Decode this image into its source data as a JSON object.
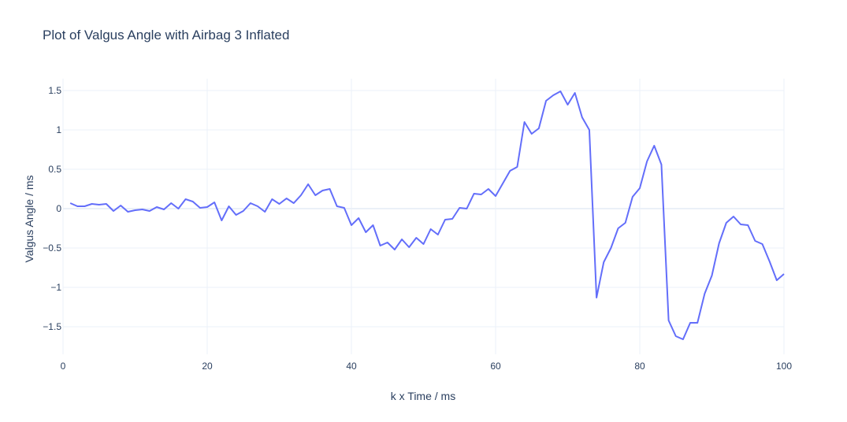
{
  "chart_data": {
    "type": "line",
    "title": "Plot of Valgus Angle with Airbag 3 Inflated",
    "xlabel": "k x Time / ms",
    "ylabel": "Valgus Angle / ms",
    "xlim": [
      0,
      100
    ],
    "ylim": [
      -1.85,
      1.65
    ],
    "xticks": [
      0,
      20,
      40,
      60,
      80,
      100
    ],
    "xtick_labels": [
      "0",
      "20",
      "40",
      "60",
      "80",
      "100"
    ],
    "yticks": [
      -1.5,
      -1,
      -0.5,
      0,
      0.5,
      1,
      1.5
    ],
    "ytick_labels": [
      "−1.5",
      "−1",
      "−0.5",
      "0",
      "0.5",
      "1",
      "1.5"
    ],
    "grid": true,
    "colors": {
      "line": "#636efa",
      "grid": "#ebf0f8",
      "text": "#2a3f5f"
    },
    "series": [
      {
        "x": [
          1,
          2,
          3,
          4,
          5,
          6,
          7,
          8,
          9,
          10,
          11,
          12,
          13,
          14,
          15,
          16,
          17,
          18,
          19,
          20,
          21,
          22,
          23,
          24,
          25,
          26,
          27,
          28,
          29,
          30,
          31,
          32,
          33,
          34,
          35,
          36,
          37,
          38,
          39,
          40,
          41,
          42,
          43,
          44,
          45,
          46,
          47,
          48,
          49,
          50,
          51,
          52,
          53,
          54,
          55,
          56,
          57,
          58,
          59,
          60,
          61,
          62,
          63,
          64,
          65,
          66,
          67,
          68,
          69,
          70,
          71,
          72,
          73,
          74,
          75,
          76,
          77,
          78,
          79,
          80,
          81,
          82,
          83,
          84,
          85,
          86,
          87,
          88,
          89,
          90,
          91,
          92,
          93,
          94,
          95,
          96,
          97,
          98,
          99,
          100
        ],
        "y": [
          0.07,
          0.03,
          0.03,
          0.06,
          0.05,
          0.06,
          -0.03,
          0.04,
          -0.04,
          -0.02,
          -0.01,
          -0.03,
          0.02,
          -0.01,
          0.07,
          0.0,
          0.12,
          0.09,
          0.01,
          0.02,
          0.08,
          -0.15,
          0.03,
          -0.08,
          -0.03,
          0.07,
          0.03,
          -0.04,
          0.12,
          0.06,
          0.13,
          0.07,
          0.17,
          0.31,
          0.17,
          0.23,
          0.25,
          0.03,
          0.01,
          -0.21,
          -0.12,
          -0.3,
          -0.21,
          -0.47,
          -0.43,
          -0.52,
          -0.39,
          -0.49,
          -0.37,
          -0.45,
          -0.26,
          -0.33,
          -0.14,
          -0.13,
          0.01,
          0.0,
          0.19,
          0.18,
          0.25,
          0.16,
          0.32,
          0.48,
          0.53,
          1.1,
          0.95,
          1.02,
          1.37,
          1.44,
          1.49,
          1.32,
          1.47,
          1.16,
          1.0,
          -1.13,
          -0.68,
          -0.5,
          -0.25,
          -0.18,
          0.15,
          0.26,
          0.6,
          0.8,
          0.56,
          -1.42,
          -1.62,
          -1.66,
          -1.45,
          -1.45,
          -1.08,
          -0.85,
          -0.44,
          -0.18,
          -0.1,
          -0.2,
          -0.21,
          -0.41,
          -0.45,
          -0.67,
          -0.91,
          -0.83
        ]
      }
    ]
  }
}
